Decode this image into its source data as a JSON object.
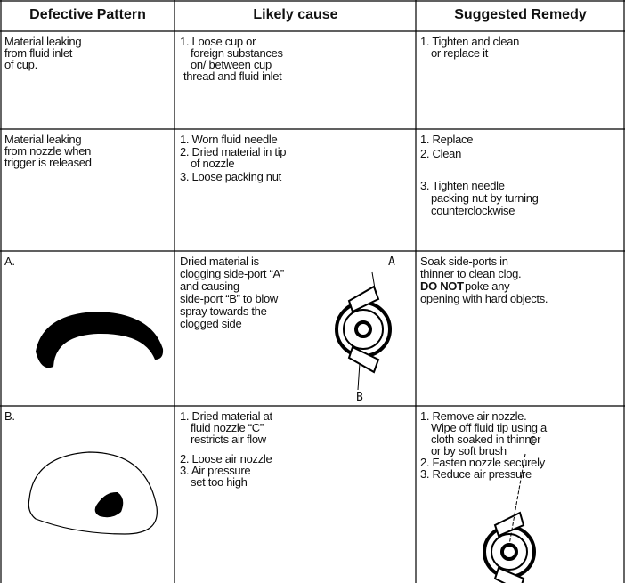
{
  "header": {
    "columns": [
      "Defective Pattern",
      "Likely cause",
      "Suggested Remedy"
    ]
  },
  "rows": [
    {
      "pattern": [
        "Material leaking",
        "from fluid inlet",
        "of cup."
      ],
      "cause": [
        "1. Loose cup or",
        "foreign substances",
        "on/ between cup",
        "thread and fluid inlet"
      ],
      "remedy": [
        "1. Tighten and clean",
        "or replace it"
      ]
    },
    {
      "pattern": [
        "Material leaking",
        "from nozzle when",
        "trigger is released"
      ],
      "cause": [
        "1. Worn fluid needle",
        "2. Dried material in tip",
        "of nozzle",
        "3. Loose packing nut"
      ],
      "remedy": [
        "1. Replace",
        "2. Clean",
        "3. Tighten needle",
        "packing nut by turning",
        "counterclockwise"
      ]
    },
    {
      "pattern": [
        "A."
      ],
      "cause": [
        "Dried material is",
        "clogging side-port “A”",
        "and causing",
        "side-port “B” to blow",
        "spray towards the",
        "clogged side"
      ],
      "figure_labels": [
        "A",
        "B"
      ],
      "remedy": [
        "Soak side-ports in",
        "thinner to clean clog.",
        "DO NOT",
        "poke any",
        "opening with hard objects."
      ]
    },
    {
      "pattern": [
        "B."
      ],
      "cause": [
        "1. Dried material at",
        "fluid nozzle “C”",
        "restricts air flow",
        "2. Loose air nozzle",
        "3. Air pressure",
        "set too high"
      ],
      "figure_labels": [
        "C"
      ],
      "remedy": [
        "1. Remove air nozzle.",
        "Wipe off fluid tip using a",
        "cloth soaked in thinner",
        "or by soft brush",
        "2. Fasten nozzle securely",
        "3. Reduce air pressure"
      ]
    }
  ]
}
